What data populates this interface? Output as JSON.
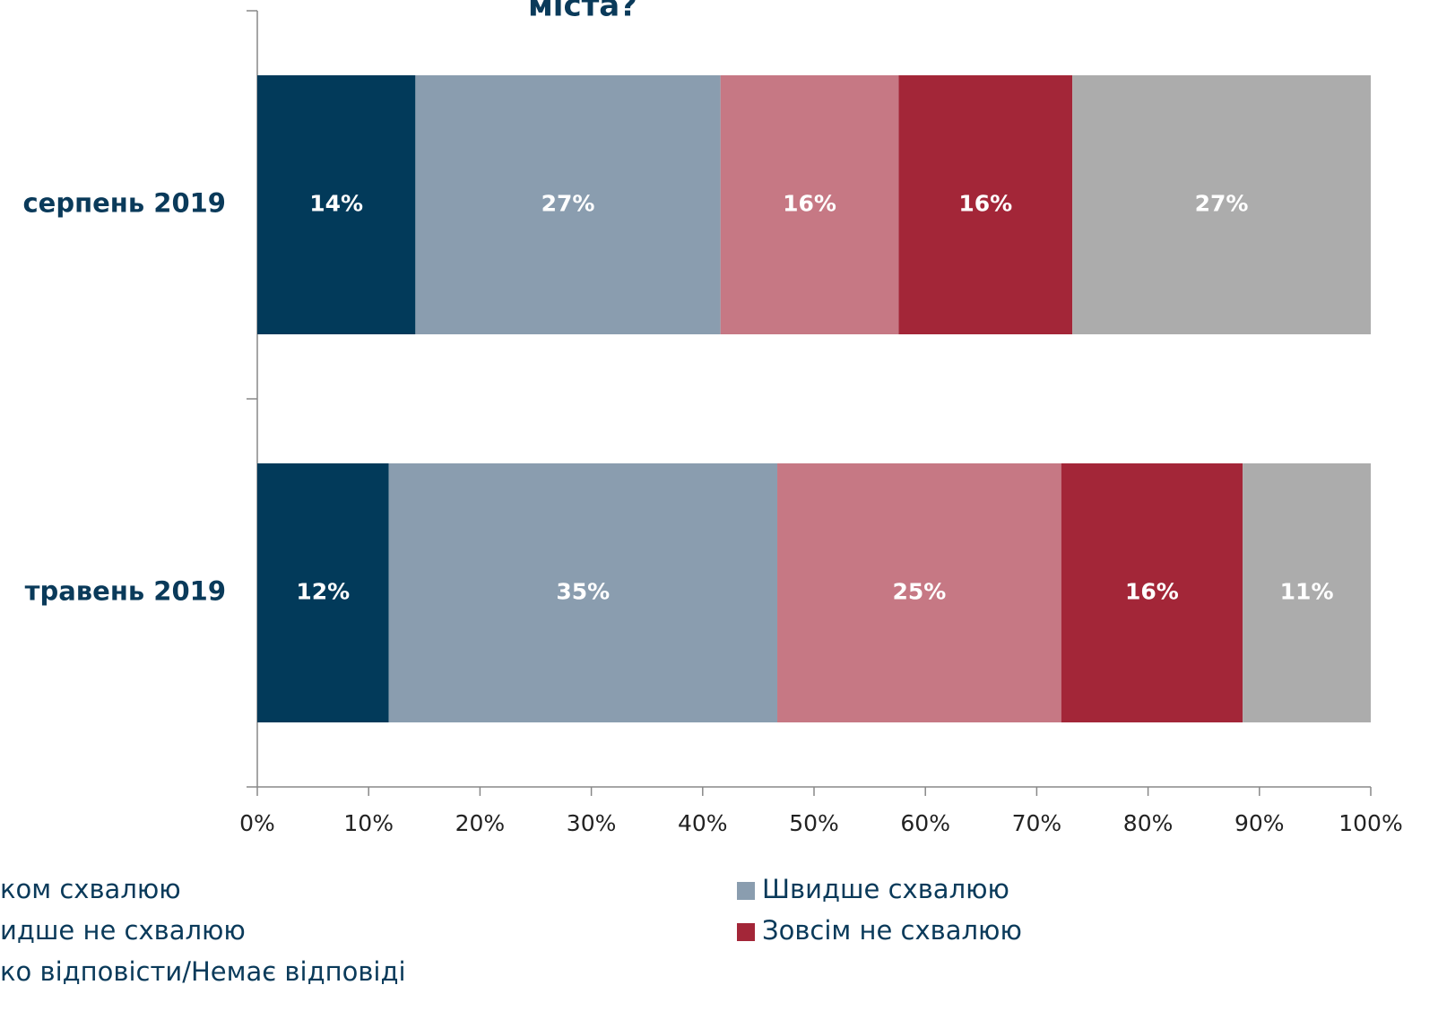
{
  "chart_data": {
    "type": "stacked_barh",
    "title": "міста?",
    "categories": [
      "серпень 2019",
      "травень 2019"
    ],
    "series": [
      {
        "name": "ком схвалюю",
        "color": "#023a5a",
        "values": [
          14.2,
          11.8
        ],
        "value_labels": [
          "14%",
          "12%"
        ]
      },
      {
        "name": "Швидше схвалюю",
        "color": "#8a9daf",
        "values": [
          27.4,
          34.9
        ],
        "value_labels": [
          "27%",
          "35%"
        ]
      },
      {
        "name": "идше не схвалюю",
        "color": "#c67884",
        "values": [
          16.0,
          25.5
        ],
        "value_labels": [
          "16%",
          "25%"
        ]
      },
      {
        "name": "Зовсім не схвалюю",
        "color": "#a32638",
        "values": [
          15.6,
          16.3
        ],
        "value_labels": [
          "16%",
          "16%"
        ]
      },
      {
        "name": "ко відповісти/Немає відповіді",
        "color": "#acacac",
        "values": [
          26.8,
          11.5
        ],
        "value_labels": [
          "27%",
          "11%"
        ]
      }
    ],
    "xlim": [
      0,
      100
    ],
    "xticks": [
      {
        "value": 0,
        "label": "0%"
      },
      {
        "value": 10,
        "label": "10%"
      },
      {
        "value": 20,
        "label": "20%"
      },
      {
        "value": 30,
        "label": "30%"
      },
      {
        "value": 40,
        "label": "40%"
      },
      {
        "value": 50,
        "label": "50%"
      },
      {
        "value": 60,
        "label": "60%"
      },
      {
        "value": 70,
        "label": "70%"
      },
      {
        "value": 80,
        "label": "80%"
      },
      {
        "value": 90,
        "label": "90%"
      },
      {
        "value": 100,
        "label": "100%"
      }
    ]
  }
}
